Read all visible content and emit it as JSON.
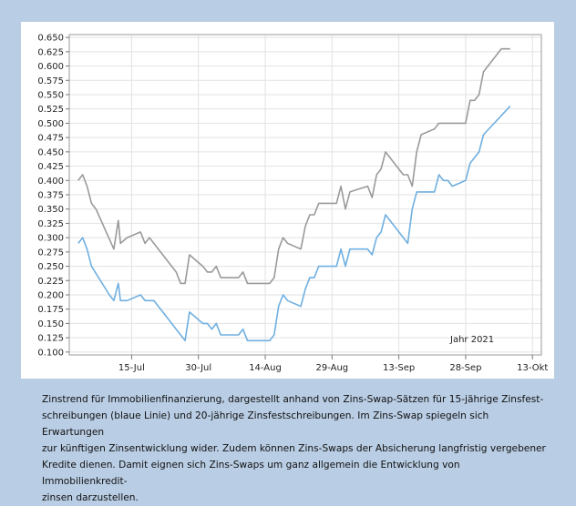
{
  "chart_data": {
    "type": "line",
    "annotation": "Jahr 2021",
    "x_tick_labels": [
      "15-Jul",
      "30-Jul",
      "14-Aug",
      "29-Aug",
      "13-Sep",
      "28-Sep",
      "13-Okt"
    ],
    "x_tick_days": [
      14,
      29,
      44,
      59,
      74,
      89,
      104
    ],
    "x_start_label": "1-Jul",
    "xlim_days": [
      0,
      106
    ],
    "ylim": [
      0.095,
      0.655
    ],
    "y_ticks": [
      "0.650",
      "0.625",
      "0.600",
      "0.575",
      "0.550",
      "0.525",
      "0.500",
      "0.475",
      "0.450",
      "0.425",
      "0.400",
      "0.375",
      "0.350",
      "0.325",
      "0.300",
      "0.275",
      "0.250",
      "0.225",
      "0.200",
      "0.175",
      "0.150",
      "0.125",
      "0.100"
    ],
    "y_tick_values": [
      0.65,
      0.625,
      0.6,
      0.575,
      0.55,
      0.525,
      0.5,
      0.475,
      0.45,
      0.425,
      0.4,
      0.375,
      0.35,
      0.325,
      0.3,
      0.275,
      0.25,
      0.225,
      0.2,
      0.175,
      0.15,
      0.125,
      0.1
    ],
    "grid": true,
    "series": [
      {
        "color": "#6fafe0",
        "points": [
          [
            2,
            0.29
          ],
          [
            3,
            0.3
          ],
          [
            4,
            0.28
          ],
          [
            5,
            0.25
          ],
          [
            9,
            0.2
          ],
          [
            10,
            0.19
          ],
          [
            11,
            0.22
          ],
          [
            11.5,
            0.19
          ],
          [
            13,
            0.19
          ],
          [
            16,
            0.2
          ],
          [
            17,
            0.19
          ],
          [
            19,
            0.19
          ],
          [
            23,
            0.15
          ],
          [
            24,
            0.14
          ],
          [
            26,
            0.12
          ],
          [
            27,
            0.17
          ],
          [
            30,
            0.15
          ],
          [
            31,
            0.15
          ],
          [
            32,
            0.14
          ],
          [
            33,
            0.15
          ],
          [
            34,
            0.13
          ],
          [
            38,
            0.13
          ],
          [
            39,
            0.14
          ],
          [
            40,
            0.12
          ],
          [
            45,
            0.12
          ],
          [
            46,
            0.13
          ],
          [
            47,
            0.18
          ],
          [
            48,
            0.2
          ],
          [
            49,
            0.19
          ],
          [
            52,
            0.18
          ],
          [
            53,
            0.21
          ],
          [
            54,
            0.23
          ],
          [
            55,
            0.23
          ],
          [
            56,
            0.25
          ],
          [
            60,
            0.25
          ],
          [
            61,
            0.28
          ],
          [
            62,
            0.25
          ],
          [
            63,
            0.28
          ],
          [
            67,
            0.28
          ],
          [
            68,
            0.27
          ],
          [
            69,
            0.3
          ],
          [
            70,
            0.31
          ],
          [
            71,
            0.34
          ],
          [
            76,
            0.29
          ],
          [
            77,
            0.35
          ],
          [
            78,
            0.38
          ],
          [
            82,
            0.38
          ],
          [
            83,
            0.41
          ],
          [
            84,
            0.4
          ],
          [
            85,
            0.4
          ],
          [
            86,
            0.39
          ],
          [
            89,
            0.4
          ],
          [
            90,
            0.43
          ],
          [
            92,
            0.45
          ],
          [
            93,
            0.48
          ],
          [
            99,
            0.53
          ]
        ]
      },
      {
        "color": "#9a9a9a",
        "points": [
          [
            2,
            0.4
          ],
          [
            3,
            0.41
          ],
          [
            4,
            0.39
          ],
          [
            5,
            0.36
          ],
          [
            6,
            0.35
          ],
          [
            10,
            0.28
          ],
          [
            11,
            0.33
          ],
          [
            11.5,
            0.29
          ],
          [
            13,
            0.3
          ],
          [
            16,
            0.31
          ],
          [
            17,
            0.29
          ],
          [
            18,
            0.3
          ],
          [
            19,
            0.29
          ],
          [
            23,
            0.25
          ],
          [
            24,
            0.24
          ],
          [
            25,
            0.22
          ],
          [
            26,
            0.22
          ],
          [
            27,
            0.27
          ],
          [
            30,
            0.25
          ],
          [
            31,
            0.24
          ],
          [
            32,
            0.24
          ],
          [
            33,
            0.25
          ],
          [
            34,
            0.23
          ],
          [
            38,
            0.23
          ],
          [
            39,
            0.24
          ],
          [
            40,
            0.22
          ],
          [
            45,
            0.22
          ],
          [
            46,
            0.23
          ],
          [
            47,
            0.28
          ],
          [
            48,
            0.3
          ],
          [
            49,
            0.29
          ],
          [
            52,
            0.28
          ],
          [
            53,
            0.32
          ],
          [
            54,
            0.34
          ],
          [
            55,
            0.34
          ],
          [
            56,
            0.36
          ],
          [
            60,
            0.36
          ],
          [
            61,
            0.39
          ],
          [
            62,
            0.35
          ],
          [
            63,
            0.38
          ],
          [
            67,
            0.39
          ],
          [
            68,
            0.37
          ],
          [
            69,
            0.41
          ],
          [
            70,
            0.42
          ],
          [
            71,
            0.45
          ],
          [
            74,
            0.42
          ],
          [
            75,
            0.41
          ],
          [
            76,
            0.41
          ],
          [
            77,
            0.39
          ],
          [
            78,
            0.45
          ],
          [
            79,
            0.48
          ],
          [
            82,
            0.49
          ],
          [
            83,
            0.5
          ],
          [
            89,
            0.5
          ],
          [
            90,
            0.54
          ],
          [
            91,
            0.54
          ],
          [
            92,
            0.55
          ],
          [
            93,
            0.59
          ],
          [
            97,
            0.63
          ],
          [
            99,
            0.63
          ]
        ]
      }
    ]
  },
  "caption": [
    "Zinstrend für Immobilienfinanzierung, dargestellt anhand von Zins-Swap-Sätzen für 15-jährige Zinsfest-",
    "schreibungen (blaue Linie) und 20-jährige Zinsfestschreibungen. Im Zins-Swap spiegeln sich Erwartungen",
    "zur künftigen Zinsentwicklung wider. Zudem können Zins-Swaps der Absicherung langfristig vergebener",
    "Kredite dienen. Damit eignen sich Zins-Swaps um ganz allgemein die Entwicklung von Immobilienkredit-",
    "zinsen darzustellen."
  ]
}
